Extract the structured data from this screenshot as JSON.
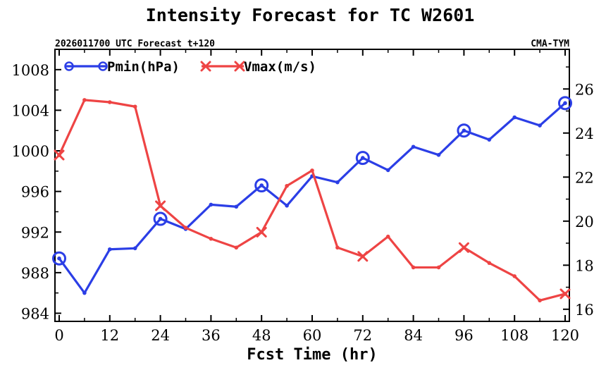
{
  "chart_data": {
    "type": "line",
    "title": "Intensity Forecast for TC W2601",
    "subtitle_left": "2026011700 UTC Forecast t+120",
    "subtitle_right": "CMA-TYM",
    "xlabel": "Fcst Time (hr)",
    "x": [
      0,
      6,
      12,
      18,
      24,
      30,
      36,
      42,
      48,
      54,
      60,
      66,
      72,
      78,
      84,
      90,
      96,
      102,
      108,
      114,
      120
    ],
    "xlim": [
      0,
      120
    ],
    "xticks": [
      0,
      12,
      24,
      36,
      48,
      60,
      72,
      84,
      96,
      108,
      120
    ],
    "left_ylim": [
      983.2,
      1010.0
    ],
    "left_yticks": [
      984,
      988,
      992,
      996,
      1000,
      1004,
      1008
    ],
    "right_ylim": [
      15.45,
      27.8
    ],
    "right_yticks": [
      16,
      18,
      20,
      22,
      24,
      26
    ],
    "series": [
      {
        "name": "Pmin(hPa)",
        "axis": "left",
        "color": "#2b3ee6",
        "marker": "circle",
        "marker_every": 4,
        "values": [
          989.4,
          986.0,
          990.3,
          990.4,
          993.3,
          992.3,
          994.7,
          994.5,
          996.6,
          994.6,
          997.5,
          996.9,
          999.3,
          998.1,
          1000.4,
          999.6,
          1002.0,
          1001.1,
          1003.3,
          1002.5,
          1004.7
        ]
      },
      {
        "name": "Vmax(m/s)",
        "axis": "right",
        "color": "#ee4444",
        "marker": "x",
        "marker_every": 4,
        "values": [
          23.0,
          25.5,
          25.4,
          25.2,
          20.7,
          19.7,
          19.2,
          18.8,
          19.5,
          21.6,
          22.3,
          18.8,
          18.4,
          19.3,
          17.9,
          17.9,
          18.8,
          18.1,
          17.5,
          16.4,
          16.7
        ]
      }
    ]
  }
}
